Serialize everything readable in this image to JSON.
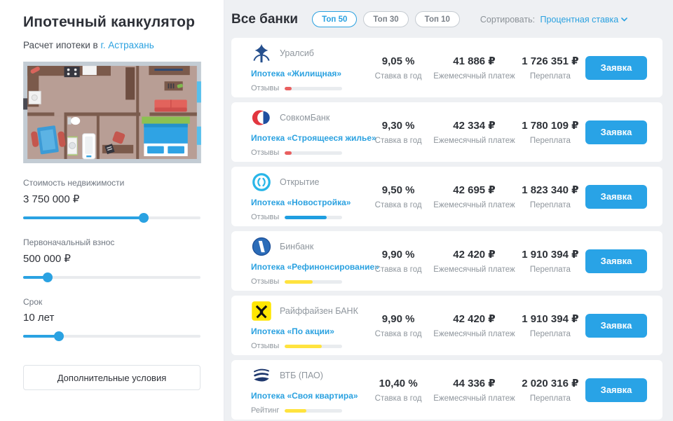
{
  "sidebar": {
    "title": "Ипотечный канкулятор",
    "subtitle_prefix": "Расчет ипотеки в",
    "city_link": "г. Астрахань",
    "sliders": [
      {
        "label": "Стоимость недвижимости",
        "value": "3 750 000 ₽",
        "percent": 68
      },
      {
        "label": "Первоначальный взнос",
        "value": "500 000 ₽",
        "percent": 14
      },
      {
        "label": "Срок",
        "value": "10 лет",
        "percent": 20
      }
    ],
    "extra_button": "Дополнительные условия"
  },
  "header": {
    "title": "Все банки",
    "chips": [
      {
        "label": "Топ 50",
        "active": true
      },
      {
        "label": "Топ 30",
        "active": false
      },
      {
        "label": "Топ 10",
        "active": false
      }
    ],
    "sort_label": "Сортировать:",
    "sort_value": "Процентная ставка"
  },
  "columns": {
    "rate": "Ставка в год",
    "payment": "Ежемесячный платеж",
    "overpayment": "Переплата"
  },
  "apply_label": "Заявка",
  "colors": {
    "accent": "#29a3e6",
    "bar_red": "#e95f5f",
    "bar_blue": "#1f9ee0",
    "bar_yellow": "#ffe33e"
  },
  "banks": [
    {
      "name": "Уралсиб",
      "product": "Ипотека «Жилищная»",
      "bar_label": "Отзывы",
      "bar": {
        "percent": 12,
        "color": "#e95f5f"
      },
      "rate": "9,05 %",
      "payment": "41 886 ₽",
      "overpayment": "1 726 351 ₽"
    },
    {
      "name": "СовкомБанк",
      "product": "Ипотека «Строящееся жилье»",
      "bar_label": "Отзывы",
      "bar": {
        "percent": 12,
        "color": "#e95f5f"
      },
      "rate": "9,30 %",
      "payment": "42 334 ₽",
      "overpayment": "1 780 109 ₽"
    },
    {
      "name": "Открытие",
      "product": "Ипотека «Новостройка»",
      "bar_label": "Отзывы",
      "bar": {
        "percent": 73,
        "color": "#1f9ee0"
      },
      "rate": "9,50 %",
      "payment": "42 695 ₽",
      "overpayment": "1 823 340 ₽"
    },
    {
      "name": "Бинбанк",
      "product": "Ипотека «Рефинонсирование»",
      "bar_label": "Отзывы",
      "bar": {
        "percent": 48,
        "color": "#ffe33e"
      },
      "rate": "9,90 %",
      "payment": "42 420 ₽",
      "overpayment": "1 910 394 ₽"
    },
    {
      "name": "Райффайзен БАНК",
      "product": "Ипотека «По акции»",
      "bar_label": "Отзывы",
      "bar": {
        "percent": 64,
        "color": "#ffe33e"
      },
      "rate": "9,90 %",
      "payment": "42 420 ₽",
      "overpayment": "1 910 394 ₽"
    },
    {
      "name": "ВТБ (ПАО)",
      "product": "Ипотека «Своя квартира»",
      "bar_label": "Рейтинг",
      "bar": {
        "percent": 37,
        "color": "#ffe33e"
      },
      "rate": "10,40 %",
      "payment": "44 336 ₽",
      "overpayment": "2 020 316 ₽"
    }
  ]
}
